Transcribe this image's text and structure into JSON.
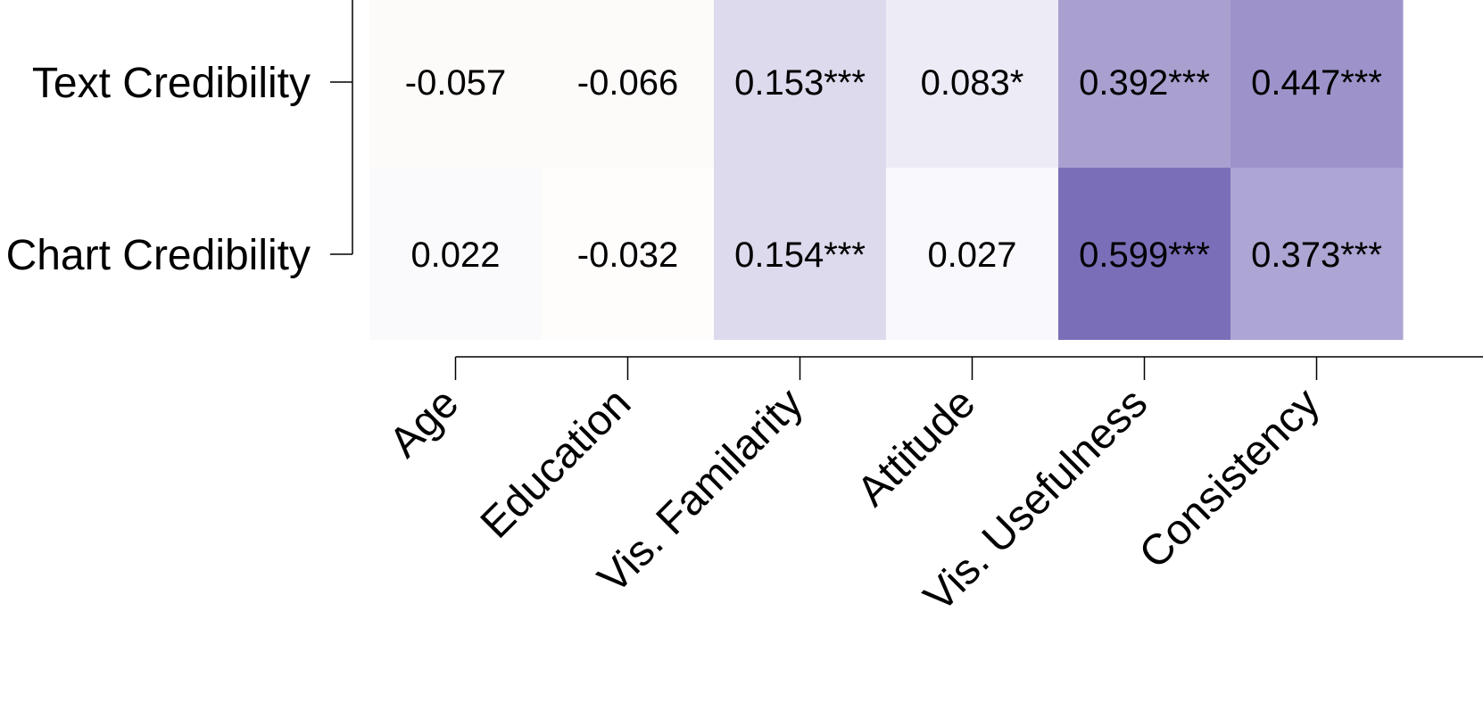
{
  "chart_data": {
    "type": "heatmap",
    "rows": [
      "Text Credibility",
      "Chart Credibility"
    ],
    "columns": [
      "Age",
      "Education",
      "Vis. Familarity",
      "Attitude",
      "Vis. Usefulness",
      "Consistency"
    ],
    "values": [
      [
        -0.057,
        -0.066,
        0.153,
        0.083,
        0.392,
        0.447
      ],
      [
        0.022,
        -0.032,
        0.154,
        0.027,
        0.599,
        0.373
      ]
    ],
    "labels": [
      [
        "-0.057",
        "-0.066",
        "0.153***",
        "0.083*",
        "0.392***",
        "0.447***"
      ],
      [
        "0.022",
        "-0.032",
        "0.154***",
        "0.027",
        "0.599***",
        "0.373***"
      ]
    ],
    "colors": {
      "negative": "#e9c5c1",
      "neutral": "#ffffff",
      "positive": "#5a4aa6",
      "axis": "#000000"
    }
  }
}
